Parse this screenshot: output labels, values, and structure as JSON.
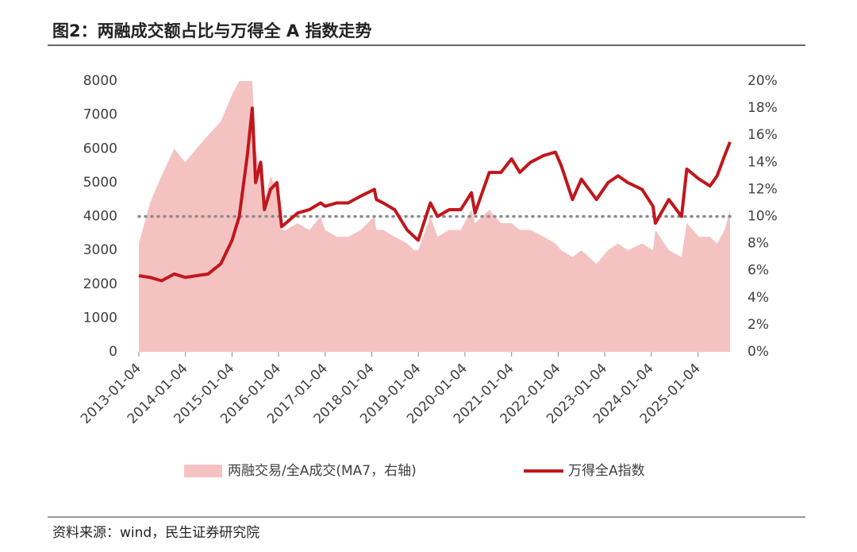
{
  "title": "图2：两融成交额占比与万得全 A 指数走势",
  "source": "资料来源：wind，民生证券研究院",
  "chart_data": {
    "type": "combo",
    "x": [
      "2013-01-04",
      "2013-04-01",
      "2013-07-01",
      "2013-10-08",
      "2014-01-02",
      "2014-04-01",
      "2014-07-01",
      "2014-10-08",
      "2015-01-05",
      "2015-03-02",
      "2015-05-04",
      "2015-06-12",
      "2015-07-08",
      "2015-08-17",
      "2015-09-15",
      "2015-11-02",
      "2015-12-22",
      "2016-01-28",
      "2016-03-01",
      "2016-06-01",
      "2016-09-01",
      "2016-11-29",
      "2017-01-03",
      "2017-04-05",
      "2017-07-03",
      "2017-10-09",
      "2018-01-24",
      "2018-02-09",
      "2018-04-02",
      "2018-07-02",
      "2018-10-08",
      "2018-12-03",
      "2019-01-03",
      "2019-04-08",
      "2019-06-03",
      "2019-09-02",
      "2019-12-02",
      "2020-02-24",
      "2020-03-23",
      "2020-07-13",
      "2020-10-12",
      "2021-01-04",
      "2021-03-09",
      "2021-06-01",
      "2021-09-13",
      "2021-12-13",
      "2022-01-28",
      "2022-04-26",
      "2022-07-05",
      "2022-10-31",
      "2023-01-30",
      "2023-04-18",
      "2023-07-03",
      "2023-10-23",
      "2024-01-17",
      "2024-02-05",
      "2024-05-20",
      "2024-08-28",
      "2024-10-08",
      "2025-01-13",
      "2025-04-08",
      "2025-06-03",
      "2025-08-01",
      "2025-09-12"
    ],
    "series": [
      {
        "name": "两融交易/全A成交(MA7，右轴)",
        "type": "area",
        "axis": "y2",
        "color": "#f5c2c2",
        "values": [
          8,
          11,
          13,
          15,
          14,
          15,
          16,
          17,
          19,
          20,
          20,
          20,
          15,
          13,
          11,
          13,
          12,
          9,
          9,
          9.5,
          9,
          10,
          9,
          8.5,
          8.5,
          9,
          10,
          9,
          9,
          8.5,
          8,
          7.5,
          7.5,
          10,
          8.5,
          9,
          9,
          10.5,
          9.5,
          10.5,
          9.5,
          9.5,
          9,
          9,
          8.5,
          8,
          7.5,
          7,
          7.5,
          6.5,
          7.5,
          8,
          7.5,
          8,
          7.5,
          9,
          7.5,
          7,
          9.5,
          8.5,
          8.5,
          8,
          9,
          10.5
        ]
      },
      {
        "name": "万得全A指数",
        "type": "line",
        "color": "#c0171c",
        "values": [
          2250,
          2200,
          2100,
          2300,
          2200,
          2250,
          2300,
          2600,
          3300,
          4000,
          5800,
          7200,
          5000,
          5600,
          4200,
          4800,
          5000,
          3700,
          3800,
          4100,
          4200,
          4400,
          4300,
          4400,
          4400,
          4600,
          4800,
          4500,
          4400,
          4200,
          3600,
          3400,
          3300,
          4400,
          4000,
          4200,
          4200,
          4700,
          4100,
          5300,
          5300,
          5700,
          5300,
          5600,
          5800,
          5900,
          5500,
          4500,
          5100,
          4500,
          5000,
          5200,
          5000,
          4800,
          4300,
          3800,
          4500,
          4000,
          5400,
          5100,
          4900,
          5200,
          5800,
          6200
        ]
      }
    ],
    "xlim": [
      "2013-01-04",
      "2025-09-12"
    ],
    "xticks": [
      "2013-01-04",
      "2014-01-04",
      "2015-01-04",
      "2016-01-04",
      "2017-01-04",
      "2018-01-04",
      "2019-01-04",
      "2020-01-04",
      "2021-01-04",
      "2022-01-04",
      "2023-01-04",
      "2024-01-04",
      "2025-01-04"
    ],
    "ylim": [
      0,
      8000
    ],
    "yticks": [
      0,
      1000,
      2000,
      3000,
      4000,
      5000,
      6000,
      7000,
      8000
    ],
    "y2lim": [
      0,
      20
    ],
    "y2ticks": [
      {
        "value": 0,
        "label": "0%"
      },
      {
        "value": 2,
        "label": "2%"
      },
      {
        "value": 4,
        "label": "4%"
      },
      {
        "value": 6,
        "label": "6%"
      },
      {
        "value": 8,
        "label": "8%"
      },
      {
        "value": 10,
        "label": "10%"
      },
      {
        "value": 12,
        "label": "12%"
      },
      {
        "value": 14,
        "label": "14%"
      },
      {
        "value": 16,
        "label": "16%"
      },
      {
        "value": 18,
        "label": "18%"
      },
      {
        "value": 20,
        "label": "20%"
      }
    ],
    "reference_line": 4000,
    "reference_color": "#8c8c8c"
  }
}
